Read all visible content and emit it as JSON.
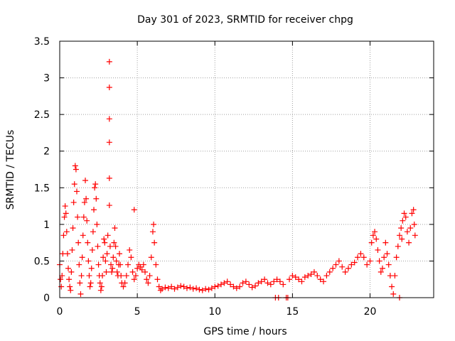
{
  "chart_data": {
    "type": "scatter",
    "title": "Day 301 of 2023, SRMTID for receiver chpg",
    "xlabel": "GPS time / hours",
    "ylabel": "SRMTID / TECUs",
    "xlim": [
      0,
      24.1
    ],
    "ylim": [
      0,
      3.5
    ],
    "x_ticks": [
      0,
      5,
      10,
      15,
      20
    ],
    "x_tick_labels": [
      "0",
      "5",
      "10",
      "15",
      "20"
    ],
    "y_ticks": [
      0,
      0.5,
      1,
      1.5,
      2,
      2.5,
      3,
      3.5
    ],
    "y_tick_labels": [
      "0",
      "0.5",
      "1",
      "1.5",
      "2",
      "2.5",
      "3",
      "3.5"
    ],
    "grid": true,
    "marker": "+",
    "color": "#ff0000",
    "series": [
      {
        "name": "SRMTID",
        "points": [
          [
            0.0,
            0.45
          ],
          [
            0.05,
            0.25
          ],
          [
            0.1,
            0.15
          ],
          [
            0.15,
            0.3
          ],
          [
            0.2,
            0.6
          ],
          [
            0.25,
            0.85
          ],
          [
            0.3,
            1.1
          ],
          [
            0.35,
            1.25
          ],
          [
            0.4,
            1.15
          ],
          [
            0.45,
            0.9
          ],
          [
            0.5,
            0.6
          ],
          [
            0.55,
            0.4
          ],
          [
            0.6,
            0.25
          ],
          [
            0.65,
            0.15
          ],
          [
            0.7,
            0.1
          ],
          [
            0.75,
            0.35
          ],
          [
            0.8,
            0.65
          ],
          [
            0.85,
            0.95
          ],
          [
            0.9,
            1.3
          ],
          [
            0.95,
            1.55
          ],
          [
            1.0,
            1.8
          ],
          [
            1.05,
            1.75
          ],
          [
            1.1,
            1.45
          ],
          [
            1.15,
            1.1
          ],
          [
            1.2,
            0.75
          ],
          [
            1.25,
            0.45
          ],
          [
            1.3,
            0.2
          ],
          [
            1.35,
            0.05
          ],
          [
            1.4,
            0.3
          ],
          [
            1.45,
            0.55
          ],
          [
            1.5,
            0.85
          ],
          [
            1.55,
            1.1
          ],
          [
            1.6,
            1.3
          ],
          [
            1.65,
            1.6
          ],
          [
            1.7,
            1.35
          ],
          [
            1.75,
            1.05
          ],
          [
            1.8,
            0.75
          ],
          [
            1.85,
            0.5
          ],
          [
            1.9,
            0.3
          ],
          [
            1.95,
            0.15
          ],
          [
            2.0,
            0.2
          ],
          [
            2.05,
            0.4
          ],
          [
            2.1,
            0.65
          ],
          [
            2.15,
            0.9
          ],
          [
            2.2,
            1.2
          ],
          [
            2.25,
            1.5
          ],
          [
            2.3,
            1.55
          ],
          [
            2.35,
            1.35
          ],
          [
            2.4,
            1.0
          ],
          [
            2.45,
            0.7
          ],
          [
            2.5,
            0.45
          ],
          [
            2.55,
            0.3
          ],
          [
            2.6,
            0.2
          ],
          [
            2.65,
            0.1
          ],
          [
            2.7,
            0.15
          ],
          [
            2.75,
            0.3
          ],
          [
            2.8,
            0.55
          ],
          [
            2.85,
            0.8
          ],
          [
            2.9,
            0.75
          ],
          [
            2.95,
            0.5
          ],
          [
            3.0,
            0.35
          ],
          [
            3.05,
            0.6
          ],
          [
            3.1,
            0.85
          ],
          [
            3.2,
            3.22
          ],
          [
            3.2,
            2.87
          ],
          [
            3.2,
            2.44
          ],
          [
            3.2,
            2.12
          ],
          [
            3.2,
            1.63
          ],
          [
            3.2,
            1.26
          ],
          [
            3.25,
            0.7
          ],
          [
            3.3,
            0.45
          ],
          [
            3.35,
            0.35
          ],
          [
            3.4,
            0.4
          ],
          [
            3.45,
            0.55
          ],
          [
            3.5,
            0.75
          ],
          [
            3.55,
            0.95
          ],
          [
            3.6,
            0.7
          ],
          [
            3.65,
            0.5
          ],
          [
            3.7,
            0.35
          ],
          [
            3.75,
            0.3
          ],
          [
            3.8,
            0.45
          ],
          [
            3.85,
            0.6
          ],
          [
            3.9,
            0.45
          ],
          [
            3.95,
            0.3
          ],
          [
            4.0,
            0.2
          ],
          [
            4.1,
            0.15
          ],
          [
            4.2,
            0.2
          ],
          [
            4.3,
            0.3
          ],
          [
            4.4,
            0.45
          ],
          [
            4.5,
            0.65
          ],
          [
            4.6,
            0.55
          ],
          [
            4.7,
            0.35
          ],
          [
            4.8,
            0.25
          ],
          [
            4.8,
            1.2
          ],
          [
            4.9,
            0.3
          ],
          [
            5.0,
            0.4
          ],
          [
            5.1,
            0.45
          ],
          [
            5.2,
            0.42
          ],
          [
            5.3,
            0.38
          ],
          [
            5.4,
            0.45
          ],
          [
            5.5,
            0.35
          ],
          [
            5.6,
            0.25
          ],
          [
            5.7,
            0.2
          ],
          [
            5.8,
            0.3
          ],
          [
            5.9,
            0.55
          ],
          [
            6.0,
            0.9
          ],
          [
            6.05,
            1.0
          ],
          [
            6.1,
            0.75
          ],
          [
            6.2,
            0.45
          ],
          [
            6.3,
            0.25
          ],
          [
            6.4,
            0.15
          ],
          [
            6.5,
            0.1
          ],
          [
            6.6,
            0.12
          ],
          [
            6.8,
            0.14
          ],
          [
            7.0,
            0.13
          ],
          [
            7.2,
            0.15
          ],
          [
            7.4,
            0.12
          ],
          [
            7.6,
            0.14
          ],
          [
            7.8,
            0.16
          ],
          [
            8.0,
            0.15
          ],
          [
            8.2,
            0.13
          ],
          [
            8.4,
            0.14
          ],
          [
            8.6,
            0.12
          ],
          [
            8.8,
            0.13
          ],
          [
            9.0,
            0.11
          ],
          [
            9.2,
            0.1
          ],
          [
            9.4,
            0.12
          ],
          [
            9.6,
            0.11
          ],
          [
            9.8,
            0.13
          ],
          [
            10.0,
            0.15
          ],
          [
            10.2,
            0.16
          ],
          [
            10.4,
            0.18
          ],
          [
            10.6,
            0.2
          ],
          [
            10.8,
            0.22
          ],
          [
            11.0,
            0.18
          ],
          [
            11.2,
            0.15
          ],
          [
            11.4,
            0.13
          ],
          [
            11.6,
            0.15
          ],
          [
            11.8,
            0.2
          ],
          [
            12.0,
            0.22
          ],
          [
            12.2,
            0.18
          ],
          [
            12.4,
            0.14
          ],
          [
            12.6,
            0.16
          ],
          [
            12.8,
            0.2
          ],
          [
            13.0,
            0.22
          ],
          [
            13.2,
            0.25
          ],
          [
            13.4,
            0.2
          ],
          [
            13.6,
            0.18
          ],
          [
            13.8,
            0.22
          ],
          [
            14.0,
            0.25
          ],
          [
            14.2,
            0.22
          ],
          [
            14.4,
            0.18
          ],
          [
            13.9,
            0.0
          ],
          [
            14.1,
            0.0
          ],
          [
            14.6,
            0.0
          ],
          [
            14.7,
            0.0
          ],
          [
            14.8,
            0.25
          ],
          [
            15.0,
            0.3
          ],
          [
            15.2,
            0.28
          ],
          [
            15.4,
            0.25
          ],
          [
            15.6,
            0.22
          ],
          [
            15.8,
            0.28
          ],
          [
            16.0,
            0.3
          ],
          [
            16.2,
            0.32
          ],
          [
            16.4,
            0.35
          ],
          [
            16.6,
            0.3
          ],
          [
            16.8,
            0.25
          ],
          [
            17.0,
            0.22
          ],
          [
            17.2,
            0.3
          ],
          [
            17.4,
            0.35
          ],
          [
            17.6,
            0.4
          ],
          [
            17.8,
            0.45
          ],
          [
            18.0,
            0.5
          ],
          [
            18.2,
            0.42
          ],
          [
            18.4,
            0.35
          ],
          [
            18.6,
            0.4
          ],
          [
            18.8,
            0.45
          ],
          [
            19.0,
            0.48
          ],
          [
            19.2,
            0.55
          ],
          [
            19.4,
            0.6
          ],
          [
            19.6,
            0.55
          ],
          [
            19.8,
            0.45
          ],
          [
            20.0,
            0.5
          ],
          [
            20.1,
            0.75
          ],
          [
            20.2,
            0.85
          ],
          [
            20.3,
            0.9
          ],
          [
            20.4,
            0.8
          ],
          [
            20.5,
            0.65
          ],
          [
            20.6,
            0.5
          ],
          [
            20.7,
            0.35
          ],
          [
            20.8,
            0.4
          ],
          [
            20.9,
            0.55
          ],
          [
            21.0,
            0.75
          ],
          [
            21.1,
            0.6
          ],
          [
            21.2,
            0.45
          ],
          [
            21.3,
            0.3
          ],
          [
            21.4,
            0.15
          ],
          [
            21.5,
            0.05
          ],
          [
            21.6,
            0.3
          ],
          [
            21.7,
            0.55
          ],
          [
            21.8,
            0.7
          ],
          [
            21.9,
            0.85
          ],
          [
            22.0,
            0.95
          ],
          [
            21.9,
            0.0
          ],
          [
            22.05,
            0.8
          ],
          [
            22.1,
            1.05
          ],
          [
            22.2,
            1.15
          ],
          [
            22.3,
            1.1
          ],
          [
            22.4,
            0.9
          ],
          [
            22.5,
            0.75
          ],
          [
            22.6,
            0.95
          ],
          [
            22.7,
            1.15
          ],
          [
            22.8,
            1.2
          ],
          [
            22.85,
            1.0
          ],
          [
            22.9,
            0.85
          ]
        ]
      }
    ]
  }
}
